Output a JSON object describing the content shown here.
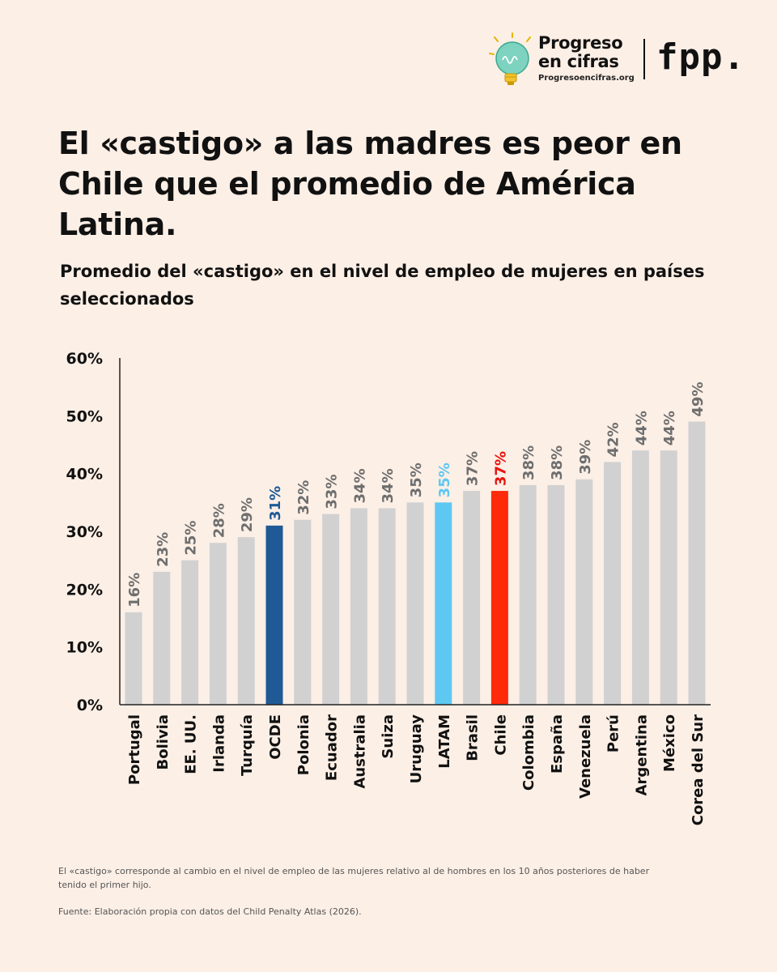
{
  "header": {
    "brand_line1": "Progreso",
    "brand_line2": "en cifras",
    "brand_url": "Progresoencifras.org",
    "partner_logo": "fpp."
  },
  "title": "El «castigo» a las madres es peor en Chile que el promedio de América Latina.",
  "subtitle": "Promedio del «castigo» en el nivel de empleo de mujeres en países seleccionados",
  "footnote": "El «castigo» corresponde al cambio en el nivel de empleo de las mujeres relativo al de hombres en los 10 años posteriores de haber tenido el primer hijo.",
  "source": "Fuente: Elaboración propia con datos del Child Penalty Atlas (2026).",
  "colors": {
    "background": "#fcefe6",
    "bar_default": "#d1d1d1",
    "label_default": "#6e6e6e",
    "ocde": "#1f5a96",
    "latam": "#5ec8f2",
    "chile": "#ff2a0a",
    "chile_label": "#e8140e"
  },
  "chart_data": {
    "type": "bar",
    "categories": [
      "Portugal",
      "Bolivia",
      "EE. UU.",
      "Irlanda",
      "Turquía",
      "OCDE",
      "Polonia",
      "Ecuador",
      "Australia",
      "Suiza",
      "Uruguay",
      "LATAM",
      "Brasil",
      "Chile",
      "Colombia",
      "España",
      "Venezuela",
      "Perú",
      "Argentina",
      "México",
      "Corea del Sur"
    ],
    "values": [
      16,
      23,
      25,
      28,
      29,
      31,
      32,
      33,
      34,
      34,
      35,
      35,
      37,
      37,
      38,
      38,
      39,
      42,
      44,
      44,
      49
    ],
    "data_labels": [
      "16%",
      "23%",
      "25%",
      "28%",
      "29%",
      "31%",
      "32%",
      "33%",
      "34%",
      "34%",
      "35%",
      "35%",
      "37%",
      "37%",
      "38%",
      "38%",
      "39%",
      "42%",
      "44%",
      "44%",
      "49%"
    ],
    "highlight": {
      "OCDE": "ocde",
      "LATAM": "latam",
      "Chile": "chile"
    },
    "y_ticks": [
      "0%",
      "10%",
      "20%",
      "30%",
      "40%",
      "50%",
      "60%"
    ],
    "ylim": [
      0,
      60
    ],
    "grid": false
  }
}
